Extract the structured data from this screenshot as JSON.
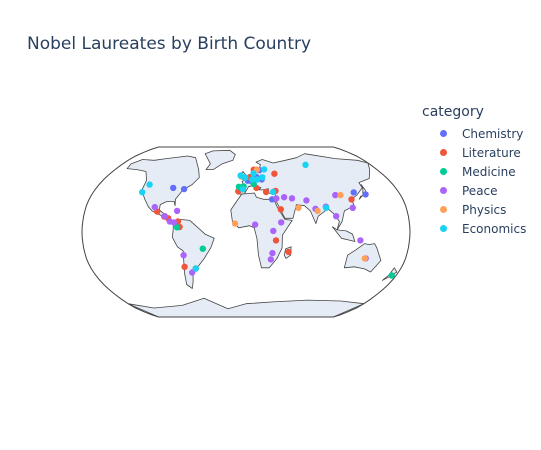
{
  "title": "Nobel Laureates by Birth Country",
  "legend": {
    "title": "category",
    "items": [
      {
        "label": "Chemistry",
        "color": "#636efa"
      },
      {
        "label": "Literature",
        "color": "#ef553b"
      },
      {
        "label": "Medicine",
        "color": "#00cc96"
      },
      {
        "label": "Peace",
        "color": "#ab63fa"
      },
      {
        "label": "Physics",
        "color": "#ffa15a"
      },
      {
        "label": "Economics",
        "color": "#19d3f3"
      }
    ]
  },
  "chart_data": {
    "type": "scatter",
    "projection": "robinson",
    "x_unit": "longitude",
    "y_unit": "latitude",
    "land_color": "#e5ecf6",
    "series": [
      {
        "name": "Chemistry",
        "points": [
          [
            -74,
            40.7
          ],
          [
            -87.6,
            41.9
          ],
          [
            -0.1,
            51.5
          ],
          [
            13.4,
            52.5
          ],
          [
            2.35,
            48.85
          ],
          [
            18.1,
            59.3
          ],
          [
            19.9,
            50.1
          ],
          [
            139.7,
            35.7
          ],
          [
            126.9,
            37.6
          ],
          [
            30,
            31
          ],
          [
            8.5,
            47.4
          ]
        ]
      },
      {
        "name": "Literature",
        "points": [
          [
            -6.3,
            53.3
          ],
          [
            -3.7,
            40.4
          ],
          [
            12.5,
            41.9
          ],
          [
            -9.1,
            38.7
          ],
          [
            4.9,
            52.4
          ],
          [
            10.7,
            59.9
          ],
          [
            37.6,
            55.8
          ],
          [
            23.7,
            38
          ],
          [
            35,
            39
          ],
          [
            39,
            21.5
          ],
          [
            -75,
            10
          ],
          [
            -73,
            4.7
          ],
          [
            -90.5,
            14.6
          ],
          [
            -58.4,
            -34.6
          ],
          [
            -71,
            -33
          ],
          [
            -99.1,
            19.4
          ],
          [
            33,
            -8
          ],
          [
            47.5,
            -18.9
          ],
          [
            -86,
            13
          ],
          [
            121,
            31
          ]
        ]
      },
      {
        "name": "Medicine",
        "points": [
          [
            -47.9,
            -15.8
          ],
          [
            -75.7,
            4.5
          ],
          [
            9.5,
            45.5
          ],
          [
            -8.6,
            42.9
          ],
          [
            174.8,
            -41.3
          ],
          [
            -2.9,
            43.3
          ]
        ]
      },
      {
        "name": "Peace",
        "points": [
          [
            -102.6,
            23.6
          ],
          [
            -90,
            15
          ],
          [
            -79.5,
            9
          ],
          [
            -84,
            10
          ],
          [
            -70,
            -22
          ],
          [
            -63.6,
            -38.4
          ],
          [
            10,
            7
          ],
          [
            38.8,
            9.1
          ],
          [
            28,
            -26
          ],
          [
            30,
            1
          ],
          [
            44,
            33
          ],
          [
            53,
            32
          ],
          [
            69,
            30
          ],
          [
            78,
            22
          ],
          [
            90,
            24
          ],
          [
            104,
            35
          ],
          [
            120,
            23
          ],
          [
            126,
            -8
          ],
          [
            135,
            -25
          ],
          [
            34.9,
            31.8
          ],
          [
            -77,
            20
          ],
          [
            100,
            15
          ],
          [
            29.5,
            -20
          ]
        ]
      },
      {
        "name": "Physics",
        "points": [
          [
            -12,
            8
          ],
          [
            59,
            23
          ],
          [
            80,
            20
          ],
          [
            110,
            35
          ],
          [
            134,
            -25
          ],
          [
            -6.2,
            53.3
          ],
          [
            15,
            60
          ]
        ]
      },
      {
        "name": "Economics",
        "points": [
          [
            -122.4,
            37.8
          ],
          [
            -118,
            45
          ],
          [
            -58.4,
            -34.6
          ],
          [
            -3.7,
            40.4
          ],
          [
            24.9,
            60.2
          ],
          [
            10,
            56
          ],
          [
            8,
            50
          ],
          [
            14,
            50
          ],
          [
            -1,
            52
          ],
          [
            21,
            52.2
          ],
          [
            90,
            23
          ],
          [
            32,
            38
          ],
          [
            86,
            65
          ],
          [
            -1.3,
            51.7
          ],
          [
            -7,
            54
          ]
        ]
      }
    ]
  }
}
